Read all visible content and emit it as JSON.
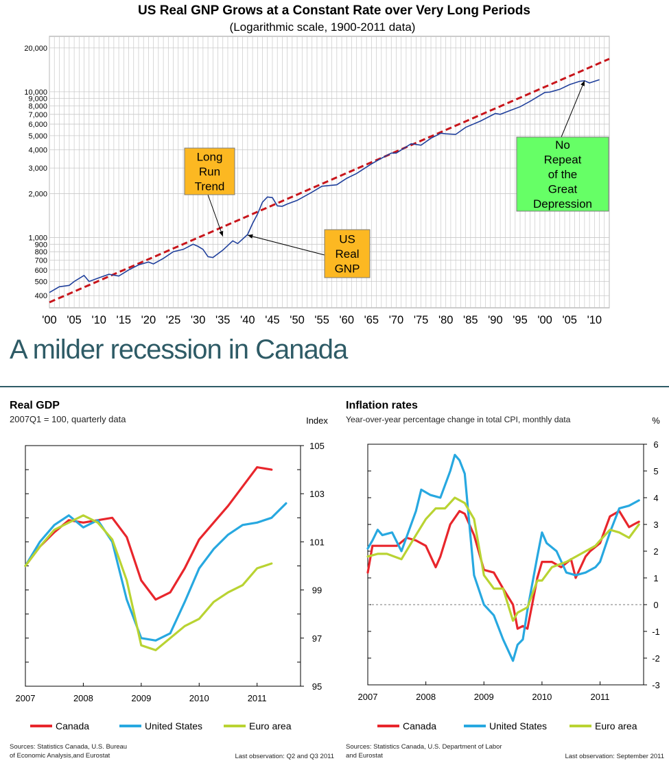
{
  "slide": {
    "title": "A milder recession in Canada"
  },
  "colors": {
    "canada": "#e8262c",
    "us": "#27a8e0",
    "euro": "#b9d332",
    "gnp": "#1f3f9b",
    "trend": "#c8151b",
    "grid": "#c8c8c8",
    "callout_orange": "#fcb822",
    "callout_green": "#66ff66",
    "title_teal": "#2e5b66"
  },
  "chart_data": [
    {
      "type": "line",
      "title": "US Real GNP Grows at a Constant Rate over Very Long Periods",
      "subtitle": "(Logarithmic scale, 1900-2011 data)",
      "yscale": "log",
      "ylim": [
        330,
        24000
      ],
      "xlim": [
        1900,
        2013
      ],
      "y_ticks": [
        {
          "v": 20000,
          "label": "20,000"
        },
        {
          "v": 10000,
          "label": "10,000"
        },
        {
          "v": 9000,
          "label": "9,000"
        },
        {
          "v": 8000,
          "label": "8,000"
        },
        {
          "v": 7000,
          "label": "7,000"
        },
        {
          "v": 6000,
          "label": "6,000"
        },
        {
          "v": 5000,
          "label": "5,000"
        },
        {
          "v": 4000,
          "label": "4,000"
        },
        {
          "v": 3000,
          "label": "3,000"
        },
        {
          "v": 2000,
          "label": "2,000"
        },
        {
          "v": 1000,
          "label": "1,000"
        },
        {
          "v": 900,
          "label": "900"
        },
        {
          "v": 800,
          "label": "800"
        },
        {
          "v": 700,
          "label": "700"
        },
        {
          "v": 600,
          "label": "600"
        },
        {
          "v": 500,
          "label": "500"
        },
        {
          "v": 400,
          "label": "400"
        }
      ],
      "x_ticks": [
        {
          "v": 1900,
          "label": "'00"
        },
        {
          "v": 1905,
          "label": "'05"
        },
        {
          "v": 1910,
          "label": "'10"
        },
        {
          "v": 1915,
          "label": "'15"
        },
        {
          "v": 1920,
          "label": "'20"
        },
        {
          "v": 1925,
          "label": "'25"
        },
        {
          "v": 1930,
          "label": "'30"
        },
        {
          "v": 1935,
          "label": "'35"
        },
        {
          "v": 1940,
          "label": "'40"
        },
        {
          "v": 1945,
          "label": "'45"
        },
        {
          "v": 1950,
          "label": "'50"
        },
        {
          "v": 1955,
          "label": "'55"
        },
        {
          "v": 1960,
          "label": "'60"
        },
        {
          "v": 1965,
          "label": "'65"
        },
        {
          "v": 1970,
          "label": "'70"
        },
        {
          "v": 1975,
          "label": "'75"
        },
        {
          "v": 1980,
          "label": "'80"
        },
        {
          "v": 1985,
          "label": "'85"
        },
        {
          "v": 1990,
          "label": "'90"
        },
        {
          "v": 1995,
          "label": "'95"
        },
        {
          "v": 2000,
          "label": "'00"
        },
        {
          "v": 2005,
          "label": "'05"
        },
        {
          "v": 2010,
          "label": "'10"
        }
      ],
      "series": [
        {
          "name": "US Real GNP",
          "kind": "solid",
          "points": [
            [
              1900,
              420
            ],
            [
              1902,
              460
            ],
            [
              1904,
              470
            ],
            [
              1905,
              500
            ],
            [
              1907,
              550
            ],
            [
              1908,
              500
            ],
            [
              1910,
              530
            ],
            [
              1912,
              560
            ],
            [
              1914,
              545
            ],
            [
              1916,
              600
            ],
            [
              1918,
              650
            ],
            [
              1920,
              680
            ],
            [
              1921,
              660
            ],
            [
              1923,
              720
            ],
            [
              1925,
              800
            ],
            [
              1927,
              830
            ],
            [
              1929,
              900
            ],
            [
              1930,
              870
            ],
            [
              1931,
              830
            ],
            [
              1932,
              740
            ],
            [
              1933,
              730
            ],
            [
              1935,
              820
            ],
            [
              1937,
              950
            ],
            [
              1938,
              910
            ],
            [
              1940,
              1050
            ],
            [
              1941,
              1250
            ],
            [
              1942,
              1450
            ],
            [
              1943,
              1750
            ],
            [
              1944,
              1900
            ],
            [
              1945,
              1880
            ],
            [
              1946,
              1650
            ],
            [
              1947,
              1640
            ],
            [
              1948,
              1700
            ],
            [
              1950,
              1800
            ],
            [
              1953,
              2050
            ],
            [
              1955,
              2250
            ],
            [
              1958,
              2300
            ],
            [
              1960,
              2550
            ],
            [
              1962,
              2750
            ],
            [
              1965,
              3200
            ],
            [
              1967,
              3500
            ],
            [
              1969,
              3800
            ],
            [
              1970,
              3800
            ],
            [
              1973,
              4400
            ],
            [
              1975,
              4300
            ],
            [
              1977,
              4800
            ],
            [
              1979,
              5200
            ],
            [
              1980,
              5150
            ],
            [
              1982,
              5100
            ],
            [
              1984,
              5700
            ],
            [
              1987,
              6300
            ],
            [
              1990,
              7100
            ],
            [
              1991,
              7000
            ],
            [
              1993,
              7450
            ],
            [
              1995,
              7900
            ],
            [
              1997,
              8600
            ],
            [
              2000,
              9900
            ],
            [
              2001,
              9950
            ],
            [
              2003,
              10400
            ],
            [
              2005,
              11200
            ],
            [
              2007,
              11800
            ],
            [
              2008,
              11900
            ],
            [
              2009,
              11500
            ],
            [
              2011,
              12100
            ]
          ]
        },
        {
          "name": "Long Run Trend",
          "kind": "dashed",
          "points": [
            [
              1900,
              360
            ],
            [
              2013,
              16800
            ]
          ]
        }
      ],
      "annotations": [
        {
          "id": "trend",
          "text": "Long Run Trend",
          "lines": [
            "Long",
            "Run",
            "Trend"
          ],
          "target": [
            1935,
            1020
          ]
        },
        {
          "id": "gnp",
          "text": "US Real GNP",
          "lines": [
            "US",
            "Real",
            "GNP"
          ],
          "target": [
            1940,
            1040
          ]
        },
        {
          "id": "depr",
          "text": "No Repeat of the Great Depression",
          "lines": [
            "No",
            "Repeat",
            "of the",
            "Great",
            "Depression"
          ],
          "target": [
            2008,
            11900
          ]
        }
      ]
    },
    {
      "type": "line",
      "title": "Real GDP",
      "subtitle": "2007Q1 = 100, quarterly data",
      "ylabel": "Index",
      "ylim": [
        95,
        105
      ],
      "y_ticks": [
        105,
        103,
        101,
        99,
        97,
        95
      ],
      "x_labels": [
        "2007",
        "2008",
        "2009",
        "2010",
        "2011"
      ],
      "xlim": [
        2007,
        2011.75
      ],
      "series": [
        {
          "name": "Canada",
          "x": [
            2007.0,
            2007.25,
            2007.5,
            2007.75,
            2008.0,
            2008.25,
            2008.5,
            2008.75,
            2009.0,
            2009.25,
            2009.5,
            2009.75,
            2010.0,
            2010.25,
            2010.5,
            2010.75,
            2011.0,
            2011.25
          ],
          "values": [
            100.0,
            100.8,
            101.4,
            101.9,
            101.8,
            101.9,
            102.0,
            101.2,
            99.4,
            98.6,
            98.9,
            99.9,
            101.1,
            101.8,
            102.5,
            103.3,
            104.1,
            104.0
          ]
        },
        {
          "name": "United States",
          "x": [
            2007.0,
            2007.25,
            2007.5,
            2007.75,
            2008.0,
            2008.25,
            2008.5,
            2008.75,
            2009.0,
            2009.25,
            2009.5,
            2009.75,
            2010.0,
            2010.25,
            2010.5,
            2010.75,
            2011.0,
            2011.25,
            2011.5
          ],
          "values": [
            100.0,
            101.0,
            101.7,
            102.1,
            101.6,
            101.9,
            101.0,
            98.6,
            97.0,
            96.9,
            97.2,
            98.5,
            99.9,
            100.7,
            101.3,
            101.7,
            101.8,
            102.0,
            102.6
          ]
        },
        {
          "name": "Euro area",
          "x": [
            2007.0,
            2007.25,
            2007.5,
            2007.75,
            2008.0,
            2008.25,
            2008.5,
            2008.75,
            2009.0,
            2009.25,
            2009.5,
            2009.75,
            2010.0,
            2010.25,
            2010.5,
            2010.75,
            2011.0,
            2011.25
          ],
          "values": [
            100.0,
            100.8,
            101.5,
            101.8,
            102.1,
            101.8,
            101.1,
            99.4,
            96.7,
            96.5,
            97.0,
            97.5,
            97.8,
            98.5,
            98.9,
            99.2,
            99.9,
            100.1
          ]
        }
      ],
      "legend": [
        "Canada",
        "United States",
        "Euro area"
      ],
      "sources": "Sources: Statistics Canada, U.S. Bureau of Economic Analysis,and Eurostat",
      "sources_lines": [
        "Sources: Statistics Canada, U.S. Bureau",
        "of Economic Analysis,and Eurostat"
      ],
      "last_observation": "Last observation: Q2 and Q3 2011"
    },
    {
      "type": "line",
      "title": "Inflation rates",
      "subtitle": "Year-over-year percentage change in total CPI, monthly data",
      "ylabel": "%",
      "ylim": [
        -3,
        6
      ],
      "y_ticks": [
        6,
        5,
        4,
        3,
        2,
        1,
        0,
        -1,
        -2,
        -3
      ],
      "x_labels": [
        "2007",
        "2008",
        "2009",
        "2010",
        "2011"
      ],
      "xlim": [
        2007,
        2011.75
      ],
      "reference_line": 0,
      "series": [
        {
          "name": "Canada",
          "x": [
            2007.0,
            2007.08,
            2007.17,
            2007.33,
            2007.5,
            2007.67,
            2007.83,
            2008.0,
            2008.17,
            2008.25,
            2008.42,
            2008.58,
            2008.67,
            2008.83,
            2009.0,
            2009.17,
            2009.33,
            2009.5,
            2009.58,
            2009.67,
            2009.75,
            2009.92,
            2010.0,
            2010.17,
            2010.33,
            2010.5,
            2010.58,
            2010.75,
            2010.83,
            2011.0,
            2011.17,
            2011.33,
            2011.5,
            2011.58,
            2011.67
          ],
          "values": [
            1.2,
            2.2,
            2.2,
            2.2,
            2.2,
            2.5,
            2.4,
            2.2,
            1.4,
            1.8,
            3.0,
            3.5,
            3.4,
            2.6,
            1.3,
            1.2,
            0.6,
            0.0,
            -0.9,
            -0.8,
            -0.9,
            1.0,
            1.6,
            1.6,
            1.4,
            1.7,
            1.0,
            1.8,
            2.0,
            2.3,
            3.3,
            3.5,
            2.9,
            3.0,
            3.1
          ]
        },
        {
          "name": "United States",
          "x": [
            2007.0,
            2007.08,
            2007.17,
            2007.25,
            2007.42,
            2007.58,
            2007.83,
            2007.92,
            2008.08,
            2008.25,
            2008.42,
            2008.5,
            2008.58,
            2008.67,
            2008.83,
            2009.0,
            2009.17,
            2009.33,
            2009.5,
            2009.58,
            2009.67,
            2009.75,
            2009.92,
            2010.0,
            2010.08,
            2010.25,
            2010.42,
            2010.58,
            2010.75,
            2010.92,
            2011.0,
            2011.17,
            2011.33,
            2011.5,
            2011.67
          ],
          "values": [
            2.1,
            2.4,
            2.8,
            2.6,
            2.7,
            2.0,
            3.5,
            4.3,
            4.1,
            4.0,
            5.0,
            5.6,
            5.4,
            4.9,
            1.1,
            0.0,
            -0.4,
            -1.3,
            -2.1,
            -1.5,
            -1.3,
            -0.2,
            1.8,
            2.7,
            2.3,
            2.0,
            1.2,
            1.1,
            1.2,
            1.4,
            1.6,
            2.7,
            3.6,
            3.7,
            3.9
          ]
        },
        {
          "name": "Euro area",
          "x": [
            2007.0,
            2007.17,
            2007.33,
            2007.58,
            2007.83,
            2008.0,
            2008.17,
            2008.33,
            2008.5,
            2008.67,
            2008.83,
            2009.0,
            2009.17,
            2009.33,
            2009.5,
            2009.58,
            2009.75,
            2009.92,
            2010.0,
            2010.17,
            2010.42,
            2010.67,
            2010.92,
            2011.0,
            2011.17,
            2011.33,
            2011.5,
            2011.67
          ],
          "values": [
            1.8,
            1.9,
            1.9,
            1.7,
            2.6,
            3.2,
            3.6,
            3.6,
            4.0,
            3.8,
            3.2,
            1.1,
            0.6,
            0.6,
            -0.6,
            -0.3,
            -0.1,
            0.9,
            0.9,
            1.4,
            1.6,
            1.9,
            2.2,
            2.4,
            2.8,
            2.7,
            2.5,
            3.0
          ]
        }
      ],
      "legend": [
        "Canada",
        "United States",
        "Euro area"
      ],
      "sources": "Sources: Statistics Canada, U.S. Department of Labor and Eurostat",
      "sources_lines": [
        "Sources: Statistics Canada, U.S. Department of Labor",
        "and Eurostat"
      ],
      "last_observation": "Last observation: September 2011"
    }
  ]
}
